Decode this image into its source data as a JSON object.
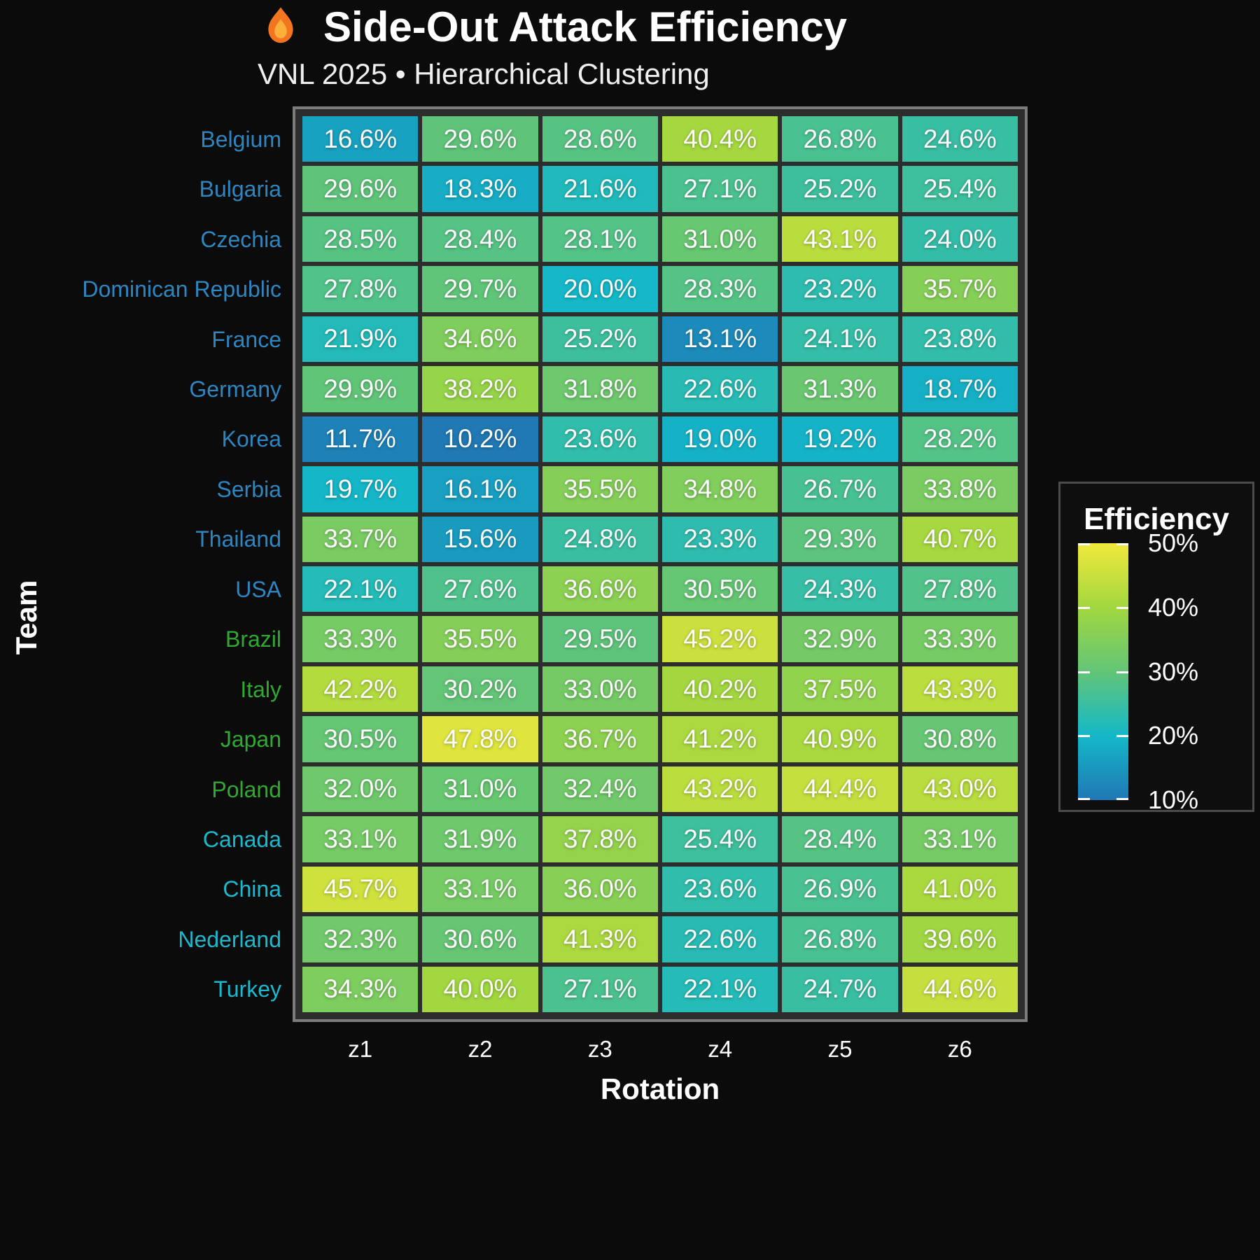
{
  "header": {
    "icon": "flame-icon",
    "title": "Side-Out Attack Efficiency",
    "subtitle": "VNL 2025 • Hierarchical Clustering"
  },
  "chart_data": {
    "type": "heatmap",
    "title": "Side-Out Attack Efficiency",
    "subtitle": "VNL 2025 • Hierarchical Clustering",
    "xlabel": "Rotation",
    "ylabel": "Team",
    "columns": [
      "z1",
      "z2",
      "z3",
      "z4",
      "z5",
      "z6"
    ],
    "value_suffix": "%",
    "rows": [
      {
        "team": "Belgium",
        "label_color": "#2E86C1",
        "values": [
          16.6,
          29.6,
          28.6,
          40.4,
          26.8,
          24.6
        ]
      },
      {
        "team": "Bulgaria",
        "label_color": "#2E86C1",
        "values": [
          29.6,
          18.3,
          21.6,
          27.1,
          25.2,
          25.4
        ]
      },
      {
        "team": "Czechia",
        "label_color": "#2E86C1",
        "values": [
          28.5,
          28.4,
          28.1,
          31.0,
          43.1,
          24.0
        ]
      },
      {
        "team": "Dominican Republic",
        "label_color": "#2E86C1",
        "values": [
          27.8,
          29.7,
          20.0,
          28.3,
          23.2,
          35.7
        ]
      },
      {
        "team": "France",
        "label_color": "#2E86C1",
        "values": [
          21.9,
          34.6,
          25.2,
          13.1,
          24.1,
          23.8
        ]
      },
      {
        "team": "Germany",
        "label_color": "#2E86C1",
        "values": [
          29.9,
          38.2,
          31.8,
          22.6,
          31.3,
          18.7
        ]
      },
      {
        "team": "Korea",
        "label_color": "#2E86C1",
        "values": [
          11.7,
          10.2,
          23.6,
          19.0,
          19.2,
          28.2
        ]
      },
      {
        "team": "Serbia",
        "label_color": "#2E86C1",
        "values": [
          19.7,
          16.1,
          35.5,
          34.8,
          26.7,
          33.8
        ]
      },
      {
        "team": "Thailand",
        "label_color": "#2E86C1",
        "values": [
          33.7,
          15.6,
          24.8,
          23.3,
          29.3,
          40.7
        ]
      },
      {
        "team": "USA",
        "label_color": "#2E86C1",
        "values": [
          22.1,
          27.6,
          36.6,
          30.5,
          24.3,
          27.8
        ]
      },
      {
        "team": "Brazil",
        "label_color": "#2FA930",
        "values": [
          33.3,
          35.5,
          29.5,
          45.2,
          32.9,
          33.3
        ]
      },
      {
        "team": "Italy",
        "label_color": "#2FA930",
        "values": [
          42.2,
          30.2,
          33.0,
          40.2,
          37.5,
          43.3
        ]
      },
      {
        "team": "Japan",
        "label_color": "#2FA930",
        "values": [
          30.5,
          47.8,
          36.7,
          41.2,
          40.9,
          30.8
        ]
      },
      {
        "team": "Poland",
        "label_color": "#2FA930",
        "values": [
          32.0,
          31.0,
          32.4,
          43.2,
          44.4,
          43.0
        ]
      },
      {
        "team": "Canada",
        "label_color": "#1CB8CE",
        "values": [
          33.1,
          31.9,
          37.8,
          25.4,
          28.4,
          33.1
        ]
      },
      {
        "team": "China",
        "label_color": "#1CB8CE",
        "values": [
          45.7,
          33.1,
          36.0,
          23.6,
          26.9,
          41.0
        ]
      },
      {
        "team": "Nederland",
        "label_color": "#1CB8CE",
        "values": [
          32.3,
          30.6,
          41.3,
          22.6,
          26.8,
          39.6
        ]
      },
      {
        "team": "Turkey",
        "label_color": "#1CB8CE",
        "values": [
          34.3,
          40.0,
          27.1,
          22.1,
          24.7,
          44.6
        ]
      }
    ],
    "colorbar": {
      "title": "Efficiency",
      "min": 10,
      "max": 50,
      "tick_labels": [
        "50%",
        "40%",
        "30%",
        "20%",
        "10%"
      ],
      "gradient_stops": [
        [
          10,
          "#2077B4"
        ],
        [
          20,
          "#14B8C9"
        ],
        [
          30,
          "#62C577"
        ],
        [
          40,
          "#A2D73F"
        ],
        [
          50,
          "#F0E93C"
        ]
      ]
    },
    "legend_position": "right",
    "grid": false
  }
}
